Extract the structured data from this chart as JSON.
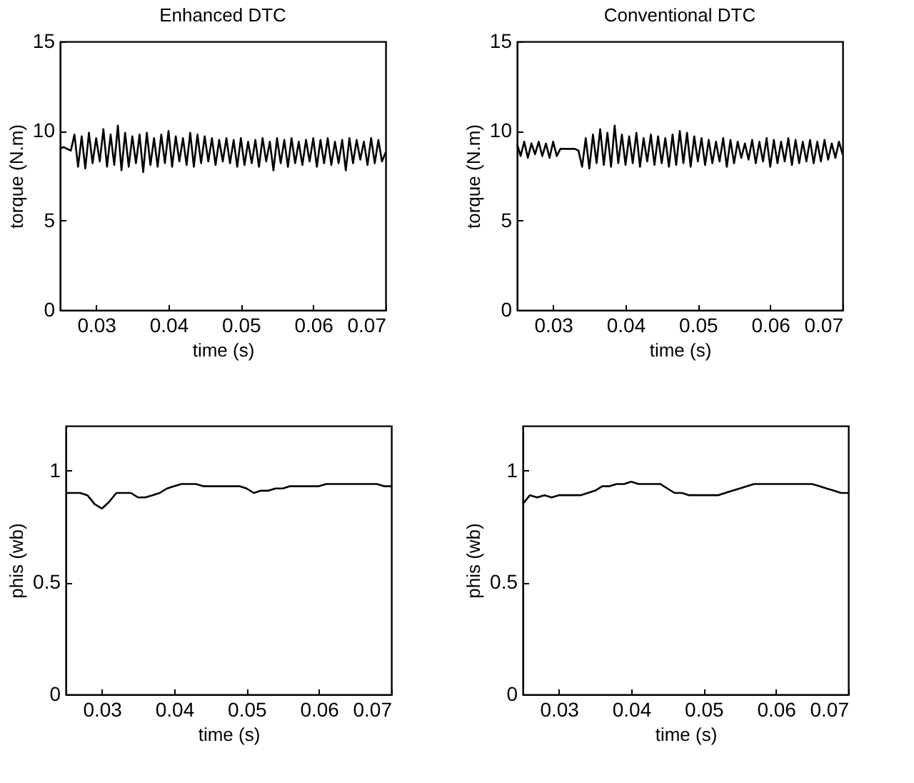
{
  "chart_data": [
    {
      "type": "line",
      "title": "Enhanced DTC",
      "xlabel": "time (s)",
      "ylabel": "torque (N.m)",
      "xlim": [
        0.025,
        0.07
      ],
      "ylim": [
        0,
        15
      ],
      "xticks": [
        0.03,
        0.04,
        0.05,
        0.06,
        0.07
      ],
      "yticks": [
        0,
        5,
        10,
        15
      ],
      "grid": false,
      "legend": false,
      "marker": "none",
      "line_style": "solid",
      "x": [
        0.025,
        0.0255,
        0.026,
        0.0265,
        0.027,
        0.0275,
        0.028,
        0.0285,
        0.029,
        0.0295,
        0.03,
        0.0305,
        0.031,
        0.0315,
        0.032,
        0.0325,
        0.033,
        0.0335,
        0.034,
        0.0345,
        0.035,
        0.0355,
        0.036,
        0.0365,
        0.037,
        0.0375,
        0.038,
        0.0385,
        0.039,
        0.0395,
        0.04,
        0.0405,
        0.041,
        0.0415,
        0.042,
        0.0425,
        0.043,
        0.0435,
        0.044,
        0.0445,
        0.045,
        0.0455,
        0.046,
        0.0465,
        0.047,
        0.0475,
        0.048,
        0.0485,
        0.049,
        0.0495,
        0.05,
        0.0505,
        0.051,
        0.0515,
        0.052,
        0.0525,
        0.053,
        0.0535,
        0.054,
        0.0545,
        0.055,
        0.0555,
        0.056,
        0.0565,
        0.057,
        0.0575,
        0.058,
        0.0585,
        0.059,
        0.0595,
        0.06,
        0.0605,
        0.061,
        0.0615,
        0.062,
        0.0625,
        0.063,
        0.0635,
        0.064,
        0.0645,
        0.065,
        0.0655,
        0.066,
        0.0665,
        0.067,
        0.0675,
        0.068,
        0.0685,
        0.069,
        0.0695,
        0.07
      ],
      "series": [
        {
          "color": "#000000",
          "values": [
            9,
            9.1,
            9,
            8.9,
            9.8,
            8.0,
            9.7,
            7.9,
            9.9,
            8.2,
            9.6,
            8.3,
            10.1,
            8.0,
            9.8,
            8.1,
            10.3,
            7.8,
            9.9,
            8.0,
            9.7,
            8.2,
            9.8,
            7.7,
            9.9,
            8.1,
            9.6,
            8.0,
            9.8,
            8.2,
            10.0,
            8.0,
            9.7,
            8.3,
            9.6,
            8.1,
            9.9,
            8.0,
            9.8,
            8.2,
            9.7,
            8.3,
            9.6,
            8.1,
            9.5,
            8.3,
            9.6,
            8.2,
            9.5,
            8.0,
            9.6,
            8.1,
            9.4,
            8.2,
            9.5,
            8.0,
            9.6,
            8.3,
            9.4,
            7.8,
            9.6,
            8.2,
            9.5,
            8.0,
            9.6,
            8.2,
            9.4,
            8.1,
            9.5,
            8.3,
            9.6,
            8.0,
            9.5,
            8.2,
            9.6,
            8.1,
            9.4,
            8.2,
            9.5,
            7.8,
            9.6,
            8.2,
            9.5,
            8.4,
            9.4,
            8.1,
            9.6,
            8.2,
            9.5,
            8.3,
            8.8
          ]
        }
      ]
    },
    {
      "type": "line",
      "title": "Conventional DTC",
      "xlabel": "time (s)",
      "ylabel": "torque (N.m)",
      "xlim": [
        0.025,
        0.07
      ],
      "ylim": [
        0,
        15
      ],
      "xticks": [
        0.03,
        0.04,
        0.05,
        0.06,
        0.07
      ],
      "yticks": [
        0,
        5,
        10,
        15
      ],
      "grid": false,
      "legend": false,
      "marker": "none",
      "line_style": "solid",
      "x": [
        0.025,
        0.0255,
        0.026,
        0.0265,
        0.027,
        0.0275,
        0.028,
        0.0285,
        0.029,
        0.0295,
        0.03,
        0.0305,
        0.031,
        0.0315,
        0.032,
        0.0325,
        0.033,
        0.0335,
        0.034,
        0.0345,
        0.035,
        0.0355,
        0.036,
        0.0365,
        0.037,
        0.0375,
        0.038,
        0.0385,
        0.039,
        0.0395,
        0.04,
        0.0405,
        0.041,
        0.0415,
        0.042,
        0.0425,
        0.043,
        0.0435,
        0.044,
        0.0445,
        0.045,
        0.0455,
        0.046,
        0.0465,
        0.047,
        0.0475,
        0.048,
        0.0485,
        0.049,
        0.0495,
        0.05,
        0.0505,
        0.051,
        0.0515,
        0.052,
        0.0525,
        0.053,
        0.0535,
        0.054,
        0.0545,
        0.055,
        0.0555,
        0.056,
        0.0565,
        0.057,
        0.0575,
        0.058,
        0.0585,
        0.059,
        0.0595,
        0.06,
        0.0605,
        0.061,
        0.0615,
        0.062,
        0.0625,
        0.063,
        0.0635,
        0.064,
        0.0645,
        0.065,
        0.0655,
        0.066,
        0.0665,
        0.067,
        0.0675,
        0.068,
        0.0685,
        0.069,
        0.0695,
        0.07
      ],
      "series": [
        {
          "color": "#000000",
          "values": [
            9.3,
            8.6,
            9.4,
            8.5,
            9.3,
            8.7,
            9.4,
            8.6,
            9.3,
            8.5,
            9.4,
            8.6,
            9.0,
            9.0,
            9.0,
            9.0,
            9.0,
            8.9,
            8.0,
            9.6,
            7.9,
            9.8,
            8.2,
            10.1,
            8.1,
            9.9,
            8.0,
            10.3,
            8.2,
            9.8,
            8.1,
            9.7,
            8.2,
            9.9,
            8.0,
            9.6,
            8.3,
            9.8,
            8.1,
            9.7,
            8.2,
            9.6,
            8.0,
            9.8,
            8.1,
            10.0,
            8.2,
            9.9,
            8.0,
            9.7,
            8.3,
            9.6,
            8.1,
            9.5,
            8.2,
            9.4,
            8.3,
            9.6,
            8.0,
            9.5,
            8.2,
            9.4,
            8.5,
            9.3,
            8.4,
            9.5,
            8.2,
            9.4,
            8.3,
            9.6,
            8.0,
            9.5,
            8.2,
            9.4,
            8.3,
            9.6,
            8.1,
            9.5,
            8.2,
            9.4,
            8.3,
            9.5,
            8.2,
            9.4,
            8.3,
            9.5,
            8.4,
            9.3,
            8.5,
            9.4,
            8.7
          ]
        }
      ]
    },
    {
      "type": "line",
      "xlabel": "time (s)",
      "ylabel": "phis (wb)",
      "xlim": [
        0.025,
        0.07
      ],
      "ylim": [
        0,
        1.2
      ],
      "xticks": [
        0.03,
        0.04,
        0.05,
        0.06,
        0.07
      ],
      "yticks": [
        0,
        0.5,
        1
      ],
      "grid": false,
      "legend": false,
      "marker": "none",
      "line_style": "solid",
      "x": [
        0.025,
        0.026,
        0.027,
        0.028,
        0.029,
        0.03,
        0.031,
        0.032,
        0.033,
        0.034,
        0.035,
        0.036,
        0.037,
        0.038,
        0.039,
        0.04,
        0.041,
        0.042,
        0.043,
        0.044,
        0.045,
        0.046,
        0.047,
        0.048,
        0.049,
        0.05,
        0.051,
        0.052,
        0.053,
        0.054,
        0.055,
        0.056,
        0.057,
        0.058,
        0.059,
        0.06,
        0.061,
        0.062,
        0.063,
        0.064,
        0.065,
        0.066,
        0.067,
        0.068,
        0.069,
        0.07
      ],
      "series": [
        {
          "color": "#000000",
          "values": [
            0.9,
            0.9,
            0.9,
            0.89,
            0.85,
            0.83,
            0.86,
            0.9,
            0.9,
            0.9,
            0.88,
            0.88,
            0.89,
            0.9,
            0.92,
            0.93,
            0.94,
            0.94,
            0.94,
            0.93,
            0.93,
            0.93,
            0.93,
            0.93,
            0.93,
            0.92,
            0.9,
            0.91,
            0.91,
            0.92,
            0.92,
            0.93,
            0.93,
            0.93,
            0.93,
            0.93,
            0.94,
            0.94,
            0.94,
            0.94,
            0.94,
            0.94,
            0.94,
            0.94,
            0.93,
            0.93
          ]
        }
      ]
    },
    {
      "type": "line",
      "xlabel": "time (s)",
      "ylabel": "phis (wb)",
      "xlim": [
        0.025,
        0.07
      ],
      "ylim": [
        0,
        1.2
      ],
      "xticks": [
        0.03,
        0.04,
        0.05,
        0.06,
        0.07
      ],
      "yticks": [
        0,
        0.5,
        1
      ],
      "grid": false,
      "legend": false,
      "marker": "none",
      "line_style": "solid",
      "x": [
        0.025,
        0.026,
        0.027,
        0.028,
        0.029,
        0.03,
        0.031,
        0.032,
        0.033,
        0.034,
        0.035,
        0.036,
        0.037,
        0.038,
        0.039,
        0.04,
        0.041,
        0.042,
        0.043,
        0.044,
        0.045,
        0.046,
        0.047,
        0.048,
        0.049,
        0.05,
        0.051,
        0.052,
        0.053,
        0.054,
        0.055,
        0.056,
        0.057,
        0.058,
        0.059,
        0.06,
        0.061,
        0.062,
        0.063,
        0.064,
        0.065,
        0.066,
        0.067,
        0.068,
        0.069,
        0.07
      ],
      "series": [
        {
          "color": "#000000",
          "values": [
            0.85,
            0.89,
            0.88,
            0.89,
            0.88,
            0.89,
            0.89,
            0.89,
            0.89,
            0.9,
            0.91,
            0.93,
            0.93,
            0.94,
            0.94,
            0.95,
            0.94,
            0.94,
            0.94,
            0.94,
            0.92,
            0.9,
            0.9,
            0.89,
            0.89,
            0.89,
            0.89,
            0.89,
            0.9,
            0.91,
            0.92,
            0.93,
            0.94,
            0.94,
            0.94,
            0.94,
            0.94,
            0.94,
            0.94,
            0.94,
            0.94,
            0.93,
            0.92,
            0.91,
            0.9,
            0.9
          ]
        }
      ]
    }
  ]
}
